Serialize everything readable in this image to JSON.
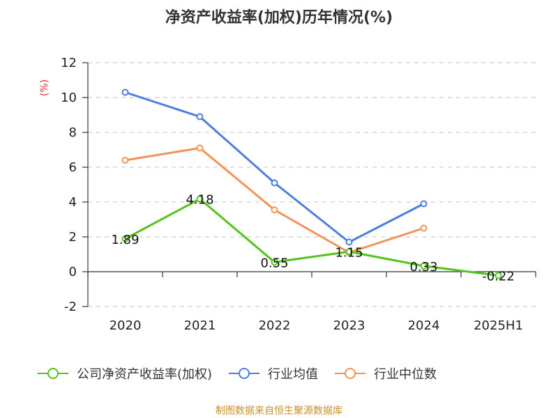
{
  "chart_data": {
    "type": "line",
    "title": "净资产收益率(加权)历年情况(%)",
    "ylabel": "(%)",
    "categories": [
      "2020",
      "2021",
      "2022",
      "2023",
      "2024",
      "2025H1"
    ],
    "ylim": [
      -2,
      12
    ],
    "yticks": [
      -2,
      0,
      2,
      4,
      6,
      8,
      10,
      12
    ],
    "grid": true,
    "legend_position": "bottom",
    "series": [
      {
        "name": "公司净资产收益率(加权)",
        "color": "#52c41a",
        "values": [
          1.89,
          4.18,
          0.55,
          1.15,
          0.33,
          -0.22
        ],
        "labels": [
          "1.89",
          "4.18",
          "0.55",
          "1.15",
          "0.33",
          "-0.22"
        ]
      },
      {
        "name": "行业均值",
        "color": "#4a7fdc",
        "values": [
          10.3,
          8.9,
          5.1,
          1.7,
          3.9,
          null
        ]
      },
      {
        "name": "行业中位数",
        "color": "#f39257",
        "values": [
          6.4,
          7.1,
          3.55,
          1.1,
          2.5,
          null
        ]
      }
    ]
  },
  "footer": {
    "source": "制图数据来自恒生聚源数据库"
  }
}
